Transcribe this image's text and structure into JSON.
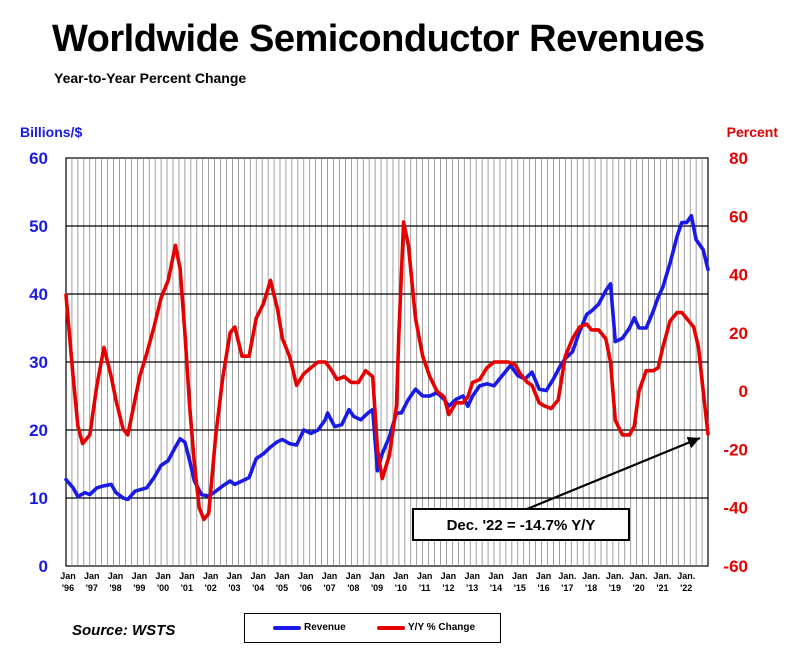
{
  "header": {
    "title": "Worldwide Semiconductor Revenues",
    "subtitle": "Year-to-Year Percent Change"
  },
  "axes": {
    "left_label": "Billions/$",
    "right_label": "Percent",
    "left_ticks": [
      "60",
      "50",
      "40",
      "30",
      "20",
      "10",
      "0"
    ],
    "right_ticks": [
      "80",
      "60",
      "40",
      "20",
      "0",
      "-20",
      "-40",
      "-60"
    ],
    "x_ticks": [
      {
        "top": "Jan",
        "bottom": "'96"
      },
      {
        "top": "Jan",
        "bottom": "'97"
      },
      {
        "top": "Jan",
        "bottom": "'98"
      },
      {
        "top": "Jan",
        "bottom": "'99"
      },
      {
        "top": "Jan",
        "bottom": "'00"
      },
      {
        "top": "Jan",
        "bottom": "'01"
      },
      {
        "top": "Jan",
        "bottom": "'02"
      },
      {
        "top": "Jan",
        "bottom": "'03"
      },
      {
        "top": "Jan",
        "bottom": "'04"
      },
      {
        "top": "Jan",
        "bottom": "'05"
      },
      {
        "top": "Jan",
        "bottom": "'06"
      },
      {
        "top": "Jan",
        "bottom": "'07"
      },
      {
        "top": "Jan",
        "bottom": "'08"
      },
      {
        "top": "Jan",
        "bottom": "'09"
      },
      {
        "top": "Jan",
        "bottom": "'10"
      },
      {
        "top": "Jan",
        "bottom": "'11"
      },
      {
        "top": "Jan",
        "bottom": "'12"
      },
      {
        "top": "Jan",
        "bottom": "'13"
      },
      {
        "top": "Jan",
        "bottom": "'14"
      },
      {
        "top": "Jan",
        "bottom": "'15"
      },
      {
        "top": "Jan",
        "bottom": "'16"
      },
      {
        "top": "Jan.",
        "bottom": "'17"
      },
      {
        "top": "Jan.",
        "bottom": "'18"
      },
      {
        "top": "Jan.",
        "bottom": "'19"
      },
      {
        "top": "Jan.",
        "bottom": "'20"
      },
      {
        "top": "Jan.",
        "bottom": "'21"
      },
      {
        "top": "Jan.",
        "bottom": "'22"
      }
    ]
  },
  "annotation": {
    "text": "Dec. '22 = -14.7% Y/Y"
  },
  "footer": {
    "source": "Source: WSTS"
  },
  "legend": {
    "revenue_label": "Revenue",
    "yy_label": "Y/Y % Change"
  },
  "colors": {
    "revenue": "#1a1ae6",
    "yy_change": "#e60000",
    "axis_left": "#1a1ae6",
    "axis_right": "#e60000"
  },
  "chart_data": {
    "type": "line",
    "title": "Worldwide Semiconductor Revenues",
    "subtitle": "Year-to-Year Percent Change",
    "ylabel_left": "Billions/$",
    "ylabel_right": "Percent",
    "ylim_left": [
      0,
      60
    ],
    "ylim_right": [
      -60,
      80
    ],
    "x_range": [
      1996.0,
      2023.0
    ],
    "grid": true,
    "series": [
      {
        "name": "Revenue",
        "axis": "left",
        "points": [
          [
            1996.0,
            12.7
          ],
          [
            1996.3,
            11.5
          ],
          [
            1996.5,
            10.2
          ],
          [
            1996.8,
            10.8
          ],
          [
            1997.0,
            10.5
          ],
          [
            1997.3,
            11.5
          ],
          [
            1997.6,
            11.8
          ],
          [
            1997.9,
            12.0
          ],
          [
            1998.1,
            10.8
          ],
          [
            1998.4,
            10.0
          ],
          [
            1998.6,
            9.8
          ],
          [
            1998.9,
            11.0
          ],
          [
            1999.1,
            11.2
          ],
          [
            1999.4,
            11.5
          ],
          [
            1999.7,
            13.0
          ],
          [
            2000.0,
            14.8
          ],
          [
            2000.3,
            15.5
          ],
          [
            2000.6,
            17.5
          ],
          [
            2000.8,
            18.7
          ],
          [
            2001.0,
            18.2
          ],
          [
            2001.2,
            15.5
          ],
          [
            2001.4,
            12.5
          ],
          [
            2001.7,
            10.5
          ],
          [
            2002.0,
            10.3
          ],
          [
            2002.3,
            11.0
          ],
          [
            2002.6,
            11.8
          ],
          [
            2002.9,
            12.5
          ],
          [
            2003.1,
            12.0
          ],
          [
            2003.4,
            12.5
          ],
          [
            2003.7,
            13.0
          ],
          [
            2004.0,
            15.8
          ],
          [
            2004.3,
            16.5
          ],
          [
            2004.6,
            17.5
          ],
          [
            2004.9,
            18.3
          ],
          [
            2005.1,
            18.6
          ],
          [
            2005.4,
            18.0
          ],
          [
            2005.7,
            17.8
          ],
          [
            2006.0,
            20.0
          ],
          [
            2006.3,
            19.5
          ],
          [
            2006.6,
            20.0
          ],
          [
            2006.9,
            21.5
          ],
          [
            2007.0,
            22.5
          ],
          [
            2007.3,
            20.5
          ],
          [
            2007.6,
            20.8
          ],
          [
            2007.9,
            23.0
          ],
          [
            2008.1,
            22.0
          ],
          [
            2008.4,
            21.5
          ],
          [
            2008.7,
            22.5
          ],
          [
            2008.9,
            23.0
          ],
          [
            2009.1,
            14.0
          ],
          [
            2009.3,
            16.5
          ],
          [
            2009.6,
            19.0
          ],
          [
            2009.9,
            22.5
          ],
          [
            2010.1,
            22.5
          ],
          [
            2010.4,
            24.5
          ],
          [
            2010.7,
            26.0
          ],
          [
            2011.0,
            25.0
          ],
          [
            2011.3,
            25.0
          ],
          [
            2011.6,
            25.5
          ],
          [
            2011.9,
            24.5
          ],
          [
            2012.1,
            23.5
          ],
          [
            2012.4,
            24.5
          ],
          [
            2012.7,
            25.0
          ],
          [
            2012.9,
            23.5
          ],
          [
            2013.1,
            25.0
          ],
          [
            2013.4,
            26.5
          ],
          [
            2013.7,
            26.8
          ],
          [
            2014.0,
            26.5
          ],
          [
            2014.3,
            27.8
          ],
          [
            2014.7,
            29.5
          ],
          [
            2015.0,
            28.0
          ],
          [
            2015.3,
            27.5
          ],
          [
            2015.6,
            28.5
          ],
          [
            2015.9,
            26.0
          ],
          [
            2016.2,
            25.8
          ],
          [
            2016.5,
            27.5
          ],
          [
            2016.8,
            29.5
          ],
          [
            2017.0,
            30.5
          ],
          [
            2017.3,
            31.5
          ],
          [
            2017.6,
            34.5
          ],
          [
            2017.9,
            37.0
          ],
          [
            2018.1,
            37.5
          ],
          [
            2018.4,
            38.5
          ],
          [
            2018.7,
            40.5
          ],
          [
            2018.9,
            41.5
          ],
          [
            2019.1,
            33.0
          ],
          [
            2019.4,
            33.5
          ],
          [
            2019.7,
            35.0
          ],
          [
            2019.9,
            36.5
          ],
          [
            2020.1,
            35.0
          ],
          [
            2020.4,
            35.0
          ],
          [
            2020.7,
            37.5
          ],
          [
            2020.9,
            39.5
          ],
          [
            2021.1,
            41.0
          ],
          [
            2021.4,
            44.5
          ],
          [
            2021.7,
            48.5
          ],
          [
            2021.9,
            50.5
          ],
          [
            2022.1,
            50.5
          ],
          [
            2022.3,
            51.5
          ],
          [
            2022.5,
            48.0
          ],
          [
            2022.8,
            46.5
          ],
          [
            2023.0,
            43.6
          ]
        ]
      },
      {
        "name": "Y/Y % Change",
        "axis": "right",
        "points": [
          [
            1996.0,
            33
          ],
          [
            1996.3,
            5
          ],
          [
            1996.5,
            -12
          ],
          [
            1996.7,
            -18
          ],
          [
            1997.0,
            -15
          ],
          [
            1997.3,
            2
          ],
          [
            1997.6,
            15
          ],
          [
            1997.9,
            5
          ],
          [
            1998.1,
            -3
          ],
          [
            1998.4,
            -13
          ],
          [
            1998.6,
            -15
          ],
          [
            1998.9,
            -3
          ],
          [
            1999.1,
            5
          ],
          [
            1999.4,
            13
          ],
          [
            1999.7,
            22
          ],
          [
            2000.0,
            32
          ],
          [
            2000.3,
            38
          ],
          [
            2000.6,
            50
          ],
          [
            2000.8,
            42
          ],
          [
            2001.0,
            20
          ],
          [
            2001.2,
            -5
          ],
          [
            2001.4,
            -25
          ],
          [
            2001.6,
            -40
          ],
          [
            2001.8,
            -44
          ],
          [
            2002.0,
            -42
          ],
          [
            2002.3,
            -15
          ],
          [
            2002.6,
            5
          ],
          [
            2002.9,
            20
          ],
          [
            2003.1,
            22
          ],
          [
            2003.4,
            12
          ],
          [
            2003.7,
            12
          ],
          [
            2004.0,
            25
          ],
          [
            2004.3,
            30
          ],
          [
            2004.6,
            38
          ],
          [
            2004.9,
            28
          ],
          [
            2005.1,
            18
          ],
          [
            2005.4,
            12
          ],
          [
            2005.7,
            2
          ],
          [
            2006.0,
            6
          ],
          [
            2006.3,
            8
          ],
          [
            2006.6,
            10
          ],
          [
            2006.9,
            10
          ],
          [
            2007.1,
            8
          ],
          [
            2007.4,
            4
          ],
          [
            2007.7,
            5
          ],
          [
            2008.0,
            3
          ],
          [
            2008.3,
            3
          ],
          [
            2008.6,
            7
          ],
          [
            2008.9,
            5
          ],
          [
            2009.1,
            -20
          ],
          [
            2009.3,
            -30
          ],
          [
            2009.6,
            -22
          ],
          [
            2009.9,
            -5
          ],
          [
            2010.0,
            20
          ],
          [
            2010.2,
            58
          ],
          [
            2010.4,
            50
          ],
          [
            2010.7,
            25
          ],
          [
            2011.0,
            12
          ],
          [
            2011.3,
            5
          ],
          [
            2011.6,
            0
          ],
          [
            2011.9,
            -2
          ],
          [
            2012.1,
            -8
          ],
          [
            2012.4,
            -4
          ],
          [
            2012.7,
            -4
          ],
          [
            2012.9,
            -2
          ],
          [
            2013.1,
            3
          ],
          [
            2013.4,
            4
          ],
          [
            2013.7,
            8
          ],
          [
            2014.0,
            10
          ],
          [
            2014.3,
            10
          ],
          [
            2014.6,
            10
          ],
          [
            2014.9,
            9
          ],
          [
            2015.1,
            6
          ],
          [
            2015.4,
            3
          ],
          [
            2015.6,
            2
          ],
          [
            2015.9,
            -4
          ],
          [
            2016.1,
            -5
          ],
          [
            2016.4,
            -6
          ],
          [
            2016.7,
            -3
          ],
          [
            2017.0,
            12
          ],
          [
            2017.3,
            18
          ],
          [
            2017.6,
            22
          ],
          [
            2017.9,
            23
          ],
          [
            2018.1,
            21
          ],
          [
            2018.4,
            21
          ],
          [
            2018.7,
            18
          ],
          [
            2018.9,
            10
          ],
          [
            2019.1,
            -10
          ],
          [
            2019.4,
            -15
          ],
          [
            2019.7,
            -15
          ],
          [
            2019.9,
            -12
          ],
          [
            2020.1,
            0
          ],
          [
            2020.4,
            7
          ],
          [
            2020.7,
            7
          ],
          [
            2020.9,
            8
          ],
          [
            2021.1,
            15
          ],
          [
            2021.4,
            24
          ],
          [
            2021.7,
            27
          ],
          [
            2021.9,
            27
          ],
          [
            2022.1,
            25
          ],
          [
            2022.4,
            22
          ],
          [
            2022.6,
            15
          ],
          [
            2022.8,
            0
          ],
          [
            2023.0,
            -14.7
          ]
        ]
      }
    ],
    "annotation": {
      "text": "Dec. '22 = -14.7% Y/Y",
      "x": 2023.0,
      "y": -14.7
    }
  }
}
